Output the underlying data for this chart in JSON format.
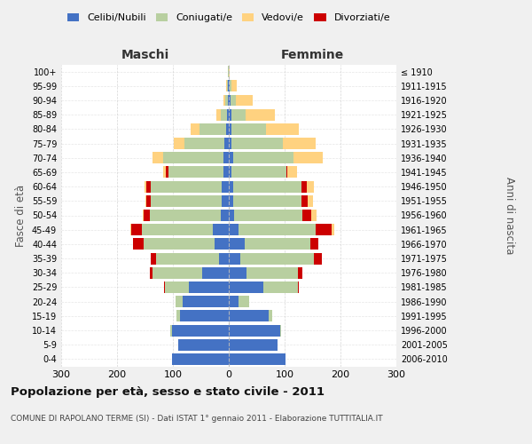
{
  "age_groups": [
    "0-4",
    "5-9",
    "10-14",
    "15-19",
    "20-24",
    "25-29",
    "30-34",
    "35-39",
    "40-44",
    "45-49",
    "50-54",
    "55-59",
    "60-64",
    "65-69",
    "70-74",
    "75-79",
    "80-84",
    "85-89",
    "90-94",
    "95-99",
    "100+"
  ],
  "birth_years": [
    "2006-2010",
    "2001-2005",
    "1996-2000",
    "1991-1995",
    "1986-1990",
    "1981-1985",
    "1976-1980",
    "1971-1975",
    "1966-1970",
    "1961-1965",
    "1956-1960",
    "1951-1955",
    "1946-1950",
    "1941-1945",
    "1936-1940",
    "1931-1935",
    "1926-1930",
    "1921-1925",
    "1916-1920",
    "1911-1915",
    "≤ 1910"
  ],
  "colors": {
    "celibe": "#4472c4",
    "coniugato": "#b8cfa0",
    "vedovo": "#ffd280",
    "divorziato": "#cc0000"
  },
  "legend_labels": [
    "Celibi/Nubili",
    "Coniugati/e",
    "Vedovi/e",
    "Divorziati/e"
  ],
  "title": "Popolazione per età, sesso e stato civile - 2011",
  "subtitle": "COMUNE DI RAPOLANO TERME (SI) - Dati ISTAT 1° gennaio 2011 - Elaborazione TUTTITALIA.IT",
  "ylabel": "Fasce di età",
  "ylabel_right": "Anni di nascita",
  "xlabel_left": "Maschi",
  "xlabel_right": "Femmine",
  "xlim": 300,
  "bg_color": "#f0f0f0",
  "plot_bg": "#ffffff",
  "m_cel": [
    102,
    90,
    102,
    88,
    82,
    72,
    48,
    18,
    25,
    28,
    14,
    12,
    12,
    10,
    10,
    8,
    5,
    3,
    2,
    1,
    0
  ],
  "m_con": [
    0,
    0,
    2,
    5,
    14,
    42,
    88,
    112,
    128,
    128,
    128,
    128,
    128,
    98,
    108,
    72,
    48,
    12,
    5,
    2,
    1
  ],
  "m_ved": [
    0,
    0,
    0,
    0,
    0,
    0,
    0,
    0,
    0,
    2,
    2,
    2,
    3,
    5,
    18,
    18,
    15,
    8,
    3,
    1,
    0
  ],
  "m_div": [
    0,
    0,
    0,
    0,
    0,
    2,
    5,
    10,
    18,
    18,
    10,
    8,
    8,
    5,
    0,
    0,
    0,
    0,
    0,
    0,
    0
  ],
  "f_nub": [
    102,
    88,
    92,
    72,
    18,
    62,
    32,
    20,
    28,
    18,
    10,
    8,
    8,
    5,
    8,
    5,
    5,
    5,
    3,
    2,
    0
  ],
  "f_con": [
    0,
    0,
    2,
    5,
    18,
    62,
    92,
    132,
    118,
    138,
    122,
    122,
    122,
    98,
    108,
    92,
    62,
    25,
    10,
    2,
    0
  ],
  "f_ved": [
    0,
    0,
    0,
    0,
    0,
    0,
    0,
    0,
    0,
    5,
    10,
    8,
    12,
    18,
    52,
    58,
    58,
    52,
    30,
    10,
    2
  ],
  "f_div": [
    0,
    0,
    0,
    0,
    0,
    2,
    8,
    14,
    14,
    28,
    15,
    12,
    10,
    2,
    0,
    0,
    0,
    0,
    0,
    0,
    0
  ]
}
